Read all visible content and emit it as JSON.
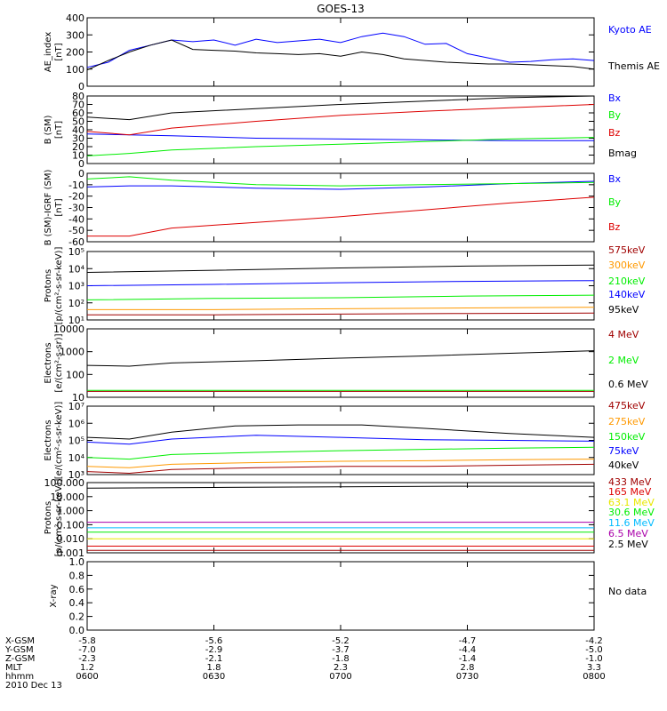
{
  "title": "GOES-13",
  "colors": {
    "black": "#000000",
    "blue": "#0000ff",
    "green": "#00ee00",
    "red": "#dd0000",
    "darkred": "#a00000",
    "orange": "#ff9900",
    "yellow": "#e8e800",
    "cyan": "#00bbff",
    "purple": "#aa00aa",
    "brown": "#8b2000"
  },
  "no_data_text": "No data",
  "chart_data": [
    {
      "type": "line",
      "ylabel": [
        "AE_index",
        "[nT]"
      ],
      "yscale": "linear",
      "ylim": [
        0,
        400
      ],
      "ticks": [
        0,
        100,
        200,
        300,
        400
      ],
      "tick_labels": [
        "0",
        "100",
        "200",
        "300",
        "400"
      ],
      "series": [
        {
          "name": "Kyoto AE",
          "color": "#0000ff",
          "x": [
            0,
            5,
            10,
            15,
            20,
            25,
            30,
            35,
            40,
            45,
            50,
            55,
            60,
            65,
            70,
            75,
            80,
            85,
            90,
            95,
            100,
            105,
            110,
            115,
            120
          ],
          "y": [
            110,
            140,
            210,
            240,
            270,
            260,
            270,
            240,
            275,
            255,
            265,
            275,
            255,
            290,
            310,
            290,
            245,
            250,
            190,
            165,
            140,
            145,
            155,
            160,
            150
          ]
        },
        {
          "name": "Themis AE",
          "color": "#000000",
          "x": [
            0,
            5,
            10,
            15,
            20,
            25,
            30,
            35,
            40,
            45,
            50,
            55,
            60,
            65,
            70,
            75,
            80,
            85,
            90,
            95,
            100,
            105,
            110,
            115,
            120
          ],
          "y": [
            95,
            150,
            200,
            240,
            270,
            215,
            210,
            205,
            195,
            190,
            185,
            190,
            175,
            200,
            185,
            160,
            150,
            140,
            135,
            130,
            130,
            125,
            120,
            115,
            100
          ]
        }
      ]
    },
    {
      "type": "line",
      "ylabel": [
        "B (SM)",
        "[nT]"
      ],
      "yscale": "linear",
      "ylim": [
        0,
        80
      ],
      "ticks": [
        0,
        10,
        20,
        30,
        40,
        50,
        60,
        70,
        80
      ],
      "tick_labels": [
        "0",
        "10",
        "20",
        "30",
        "40",
        "50",
        "60",
        "70",
        "80"
      ],
      "series": [
        {
          "name": "Bx",
          "color": "#0000ff",
          "x": [
            0,
            20,
            40,
            60,
            80,
            100,
            120
          ],
          "y": [
            35,
            33,
            30,
            29,
            28,
            27,
            27
          ]
        },
        {
          "name": "By",
          "color": "#00ee00",
          "x": [
            0,
            10,
            20,
            40,
            60,
            80,
            100,
            120
          ],
          "y": [
            9,
            12,
            16,
            20,
            23,
            26,
            29,
            31
          ]
        },
        {
          "name": "Bz",
          "color": "#dd0000",
          "x": [
            0,
            10,
            20,
            40,
            60,
            80,
            100,
            120
          ],
          "y": [
            38,
            34,
            42,
            50,
            57,
            62,
            66,
            70
          ]
        },
        {
          "name": "Bmag",
          "color": "#000000",
          "x": [
            0,
            10,
            20,
            40,
            60,
            80,
            100,
            120
          ],
          "y": [
            55,
            52,
            60,
            65,
            70,
            74,
            78,
            80
          ]
        }
      ]
    },
    {
      "type": "line",
      "ylabel": [
        "B (SM)-IGRF (SM)",
        "[nT]"
      ],
      "yscale": "linear",
      "ylim": [
        -60,
        0
      ],
      "ticks": [
        -60,
        -50,
        -40,
        -30,
        -20,
        -10,
        0
      ],
      "tick_labels": [
        "-60",
        "-50",
        "-40",
        "-30",
        "-20",
        "-10",
        "0"
      ],
      "series": [
        {
          "name": "Bx",
          "color": "#0000ff",
          "x": [
            0,
            10,
            20,
            40,
            60,
            80,
            100,
            120
          ],
          "y": [
            -12,
            -11,
            -11,
            -13,
            -14,
            -12,
            -9,
            -7
          ]
        },
        {
          "name": "By",
          "color": "#00ee00",
          "x": [
            0,
            10,
            20,
            40,
            60,
            80,
            100,
            120
          ],
          "y": [
            -5,
            -3,
            -6,
            -10,
            -11,
            -10,
            -9,
            -8
          ]
        },
        {
          "name": "Bz",
          "color": "#dd0000",
          "x": [
            0,
            10,
            20,
            40,
            60,
            80,
            100,
            120
          ],
          "y": [
            -55,
            -55,
            -48,
            -43,
            -38,
            -32,
            -26,
            -21
          ]
        }
      ]
    },
    {
      "type": "line",
      "ylabel": [
        "Protons",
        "[p/(cm²-s-sr-keV)]"
      ],
      "yscale": "log",
      "ylim": [
        10,
        100000
      ],
      "ticks": [
        10,
        100,
        1000,
        10000,
        100000
      ],
      "tick_labels": [
        "10¹",
        "10²",
        "10³",
        "10⁴",
        "10⁵"
      ],
      "series": [
        {
          "name": "575keV",
          "color": "#a00000",
          "x": [
            0,
            30,
            60,
            90,
            120
          ],
          "y": [
            20,
            20,
            22,
            24,
            25
          ]
        },
        {
          "name": "300keV",
          "color": "#ff9900",
          "x": [
            0,
            30,
            60,
            90,
            120
          ],
          "y": [
            40,
            40,
            45,
            50,
            55
          ]
        },
        {
          "name": "210keV",
          "color": "#00ee00",
          "x": [
            0,
            30,
            60,
            90,
            120
          ],
          "y": [
            150,
            180,
            200,
            250,
            280
          ]
        },
        {
          "name": "140keV",
          "color": "#0000ff",
          "x": [
            0,
            30,
            60,
            90,
            120
          ],
          "y": [
            1000,
            1200,
            1500,
            1800,
            2000
          ]
        },
        {
          "name": "95keV",
          "color": "#000000",
          "x": [
            0,
            30,
            60,
            90,
            120
          ],
          "y": [
            6000,
            8000,
            11000,
            14000,
            16000
          ]
        }
      ]
    },
    {
      "type": "line",
      "ylabel": [
        "Electrons",
        "[e/(cm²-s-sr)]"
      ],
      "yscale": "log",
      "ylim": [
        10,
        10000
      ],
      "ticks": [
        10,
        100,
        1000,
        10000
      ],
      "tick_labels": [
        "10",
        "100",
        "1000",
        "10000"
      ],
      "series": [
        {
          "name": "4 MeV",
          "color": "#a00000",
          "x": [
            0,
            30,
            60,
            90,
            120
          ],
          "y": [
            18,
            18,
            18,
            18,
            18
          ]
        },
        {
          "name": "2 MeV",
          "color": "#00ee00",
          "x": [
            0,
            30,
            60,
            90,
            120
          ],
          "y": [
            20,
            20,
            20,
            20,
            20
          ]
        },
        {
          "name": "0.6 MeV",
          "color": "#000000",
          "x": [
            0,
            10,
            20,
            40,
            60,
            80,
            100,
            120
          ],
          "y": [
            250,
            230,
            320,
            400,
            520,
            650,
            850,
            1100
          ]
        }
      ]
    },
    {
      "type": "line",
      "ylabel": [
        "Electrons",
        "[e/(cm²-s-sr-keV)]"
      ],
      "yscale": "log",
      "ylim": [
        1000,
        10000000
      ],
      "ticks": [
        1000,
        10000,
        100000,
        1000000,
        10000000
      ],
      "tick_labels": [
        "10³",
        "10⁴",
        "10⁵",
        "10⁶",
        "10⁷"
      ],
      "series": [
        {
          "name": "475keV",
          "color": "#a00000",
          "x": [
            0,
            10,
            20,
            40,
            60,
            80,
            100,
            120
          ],
          "y": [
            1500,
            1200,
            2000,
            2500,
            3000,
            3000,
            3500,
            4000
          ]
        },
        {
          "name": "275keV",
          "color": "#ff9900",
          "x": [
            0,
            10,
            20,
            40,
            60,
            80,
            100,
            120
          ],
          "y": [
            3000,
            2500,
            4000,
            5000,
            6000,
            6500,
            7500,
            8000
          ]
        },
        {
          "name": "150keV",
          "color": "#00ee00",
          "x": [
            0,
            10,
            20,
            40,
            60,
            80,
            100,
            120
          ],
          "y": [
            10000,
            8000,
            15000,
            20000,
            25000,
            30000,
            35000,
            40000
          ]
        },
        {
          "name": "75keV",
          "color": "#0000ff",
          "x": [
            0,
            10,
            20,
            40,
            60,
            80,
            100,
            120
          ],
          "y": [
            80000,
            60000,
            120000,
            200000,
            150000,
            110000,
            100000,
            90000
          ]
        },
        {
          "name": "40keV",
          "color": "#000000",
          "x": [
            0,
            10,
            20,
            35,
            50,
            65,
            80,
            100,
            120
          ],
          "y": [
            150000,
            120000,
            300000,
            700000,
            800000,
            800000,
            500000,
            250000,
            150000
          ]
        }
      ]
    },
    {
      "type": "line",
      "ylabel": [
        "Protons",
        "[p/(cm²-s-sr-keV)]"
      ],
      "yscale": "log",
      "ylim": [
        0.001,
        100
      ],
      "ticks": [
        0.001,
        0.01,
        0.1,
        1,
        10,
        100
      ],
      "tick_labels": [
        "0.001",
        "0.010",
        "0.100",
        "1.000",
        "10.000",
        "100.000"
      ],
      "series": [
        {
          "name": "433 MeV",
          "color": "#a00000",
          "x": [
            0,
            30,
            60,
            90,
            120
          ],
          "y": [
            0.0015,
            0.0015,
            0.0015,
            0.0015,
            0.0015
          ]
        },
        {
          "name": "165 MeV",
          "color": "#dd0000",
          "x": [
            0,
            30,
            60,
            90,
            120
          ],
          "y": [
            0.003,
            0.003,
            0.003,
            0.003,
            0.003
          ]
        },
        {
          "name": "63.1 MeV",
          "color": "#e8e800",
          "x": [
            0,
            30,
            60,
            90,
            120
          ],
          "y": [
            0.01,
            0.01,
            0.01,
            0.01,
            0.01
          ]
        },
        {
          "name": "30.6 MeV",
          "color": "#00ee00",
          "x": [
            0,
            30,
            60,
            90,
            120
          ],
          "y": [
            0.03,
            0.03,
            0.03,
            0.03,
            0.03
          ]
        },
        {
          "name": "11.6 MeV",
          "color": "#00bbff",
          "x": [
            0,
            30,
            60,
            90,
            120
          ],
          "y": [
            0.06,
            0.06,
            0.06,
            0.06,
            0.06
          ]
        },
        {
          "name": "6.5 MeV",
          "color": "#aa00aa",
          "x": [
            0,
            30,
            60,
            90,
            120
          ],
          "y": [
            0.15,
            0.15,
            0.15,
            0.15,
            0.15
          ]
        },
        {
          "name": "2.5 MeV",
          "color": "#000000",
          "x": [
            0,
            30,
            60,
            90,
            120
          ],
          "y": [
            40,
            45,
            50,
            55,
            55
          ]
        }
      ]
    },
    {
      "type": "line",
      "ylabel": [
        "X-ray"
      ],
      "yscale": "linear",
      "ylim": [
        0,
        1
      ],
      "ticks": [
        0,
        0.2,
        0.4,
        0.6,
        0.8,
        1
      ],
      "tick_labels": [
        "0.0",
        "0.2",
        "0.4",
        "0.6",
        "0.8",
        "1.0"
      ],
      "series": []
    }
  ],
  "x_axis": {
    "minutes": [
      0,
      30,
      60,
      90,
      120
    ],
    "rows": [
      {
        "label": "X-GSM",
        "values": [
          "-5.8",
          "-5.6",
          "-5.2",
          "-4.7",
          "-4.2"
        ]
      },
      {
        "label": "Y-GSM",
        "values": [
          "-7.0",
          "-2.9",
          "-3.7",
          "-4.4",
          "-5.0"
        ]
      },
      {
        "label": "Z-GSM",
        "values": [
          "-2.3",
          "-2.1",
          "-1.8",
          "-1.4",
          "-1.0"
        ]
      },
      {
        "label": "MLT",
        "values": [
          "1.2",
          "1.8",
          "2.3",
          "2.8",
          "3.3"
        ]
      },
      {
        "label": "hhmm",
        "values": [
          "0600",
          "0630",
          "0700",
          "0730",
          "0800"
        ]
      }
    ],
    "date": "2010 Dec 13"
  }
}
